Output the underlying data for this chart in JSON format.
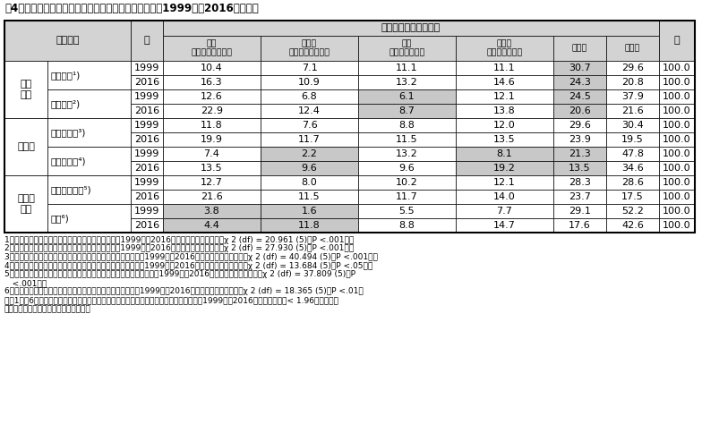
{
  "title": "表4：健康状態別にみた現職の雇用形態・職種の分布：1999年と2016年の比較",
  "col_header_top": "現在の雇用形態・職種",
  "row_groups": [
    {
      "group_label": "疾患\n罹患",
      "sub_groups": [
        {
          "sub_label": "罹患なし¹)",
          "rows": [
            {
              "year": "1999",
              "vals": [
                "10.4",
                "7.1",
                "11.1",
                "11.1",
                "30.7",
                "29.6",
                "100.0"
              ],
              "gray": [
                false,
                false,
                false,
                false,
                true,
                false,
                false
              ]
            },
            {
              "year": "2016",
              "vals": [
                "16.3",
                "10.9",
                "13.2",
                "14.6",
                "24.3",
                "20.8",
                "100.0"
              ],
              "gray": [
                false,
                false,
                false,
                false,
                true,
                false,
                false
              ]
            }
          ]
        },
        {
          "sub_label": "罹患あり²)",
          "rows": [
            {
              "year": "1999",
              "vals": [
                "12.6",
                "6.8",
                "6.1",
                "12.1",
                "24.5",
                "37.9",
                "100.0"
              ],
              "gray": [
                false,
                false,
                true,
                false,
                true,
                false,
                false
              ]
            },
            {
              "year": "2016",
              "vals": [
                "22.9",
                "12.4",
                "8.7",
                "13.8",
                "20.6",
                "21.6",
                "100.0"
              ],
              "gray": [
                false,
                false,
                true,
                false,
                true,
                false,
                false
              ]
            }
          ]
        }
      ]
    },
    {
      "group_label": "うつ病",
      "sub_groups": [
        {
          "sub_label": "可能性低い³)",
          "rows": [
            {
              "year": "1999",
              "vals": [
                "11.8",
                "7.6",
                "8.8",
                "12.0",
                "29.6",
                "30.4",
                "100.0"
              ],
              "gray": [
                false,
                false,
                false,
                false,
                false,
                false,
                false
              ]
            },
            {
              "year": "2016",
              "vals": [
                "19.9",
                "11.7",
                "11.5",
                "13.5",
                "23.9",
                "19.5",
                "100.0"
              ],
              "gray": [
                false,
                false,
                false,
                false,
                false,
                false,
                false
              ]
            }
          ]
        },
        {
          "sub_label": "可能性高い⁴)",
          "rows": [
            {
              "year": "1999",
              "vals": [
                "7.4",
                "2.2",
                "13.2",
                "8.1",
                "21.3",
                "47.8",
                "100.0"
              ],
              "gray": [
                false,
                true,
                false,
                true,
                true,
                false,
                false
              ]
            },
            {
              "year": "2016",
              "vals": [
                "13.5",
                "9.6",
                "9.6",
                "19.2",
                "13.5",
                "34.6",
                "100.0"
              ],
              "gray": [
                false,
                true,
                false,
                true,
                true,
                false,
                false
              ]
            }
          ]
        }
      ]
    },
    {
      "group_label": "主観的\n健康",
      "sub_groups": [
        {
          "sub_label": "よい／ふつう⁵)",
          "rows": [
            {
              "year": "1999",
              "vals": [
                "12.7",
                "8.0",
                "10.2",
                "12.1",
                "28.3",
                "28.6",
                "100.0"
              ],
              "gray": [
                false,
                false,
                false,
                false,
                false,
                false,
                false
              ]
            },
            {
              "year": "2016",
              "vals": [
                "21.6",
                "11.5",
                "11.7",
                "14.0",
                "23.7",
                "17.5",
                "100.0"
              ],
              "gray": [
                false,
                false,
                false,
                false,
                false,
                false,
                false
              ]
            }
          ]
        },
        {
          "sub_label": "悪い⁶)",
          "rows": [
            {
              "year": "1999",
              "vals": [
                "3.8",
                "1.6",
                "5.5",
                "7.7",
                "29.1",
                "52.2",
                "100.0"
              ],
              "gray": [
                true,
                true,
                false,
                false,
                false,
                false,
                false
              ]
            },
            {
              "year": "2016",
              "vals": [
                "4.4",
                "11.8",
                "8.8",
                "14.7",
                "17.6",
                "42.6",
                "100.0"
              ],
              "gray": [
                true,
                true,
                false,
                false,
                false,
                false,
                false
              ]
            }
          ]
        }
      ]
    }
  ],
  "footnotes": [
    "1）「罹患なし」の人では、雇用形態・職種の分布は1999年と2016年で有意差がみられた（χ 2 (df) = 20.961 (5)、P <.001）。",
    "2）「罹患あり」の人では、雇用形態・職種の分布は1999年と2016年で有意差がみられた（χ 2 (df) = 27.930 (5)、P <.001）。",
    "3）うつ病の可能性「低い」の人では、雇用形態・職種の分布は1999年と2016年で有意差がみられた（χ 2 (df) = 40.494 (5)、P <.001）。",
    "4）うつ病の可能性「高い」の人では、雇用形態・職種の分布は1999年と2016年で有意差がみられた（χ 2 (df) = 13.684 (5)、P <.05）。",
    "5）主観的健康が「よい／ふつう」の人では、雇用形態・職種の分布は1999年と2016年で有意差がみられた（χ 2 (df) = 37.809 (5)、P\n   <.001）。",
    "6）主観的健康が「悪い」の人では、雇用形態・職種の分布は1999年と2016年で有意差がみられた（χ 2 (df) = 18.365 (5)、P <.01）\n以上1）～6）については、いずれも灰色のバックグラウンドのセルは、残差分析の結果、1999年と2016年で顕著な差（< 1.96）がみられ\nたカテゴリーであることを示している。"
  ],
  "gray_color": "#c8c8c8",
  "header_gray": "#d3d3d3",
  "col_data_headers": [
    "正規\nホワイトカラー職",
    "非正規\nホワイトカラー職",
    "正規\nブルーカラー職",
    "非正規\nブルーカラー職",
    "自営業",
    "無　職"
  ]
}
